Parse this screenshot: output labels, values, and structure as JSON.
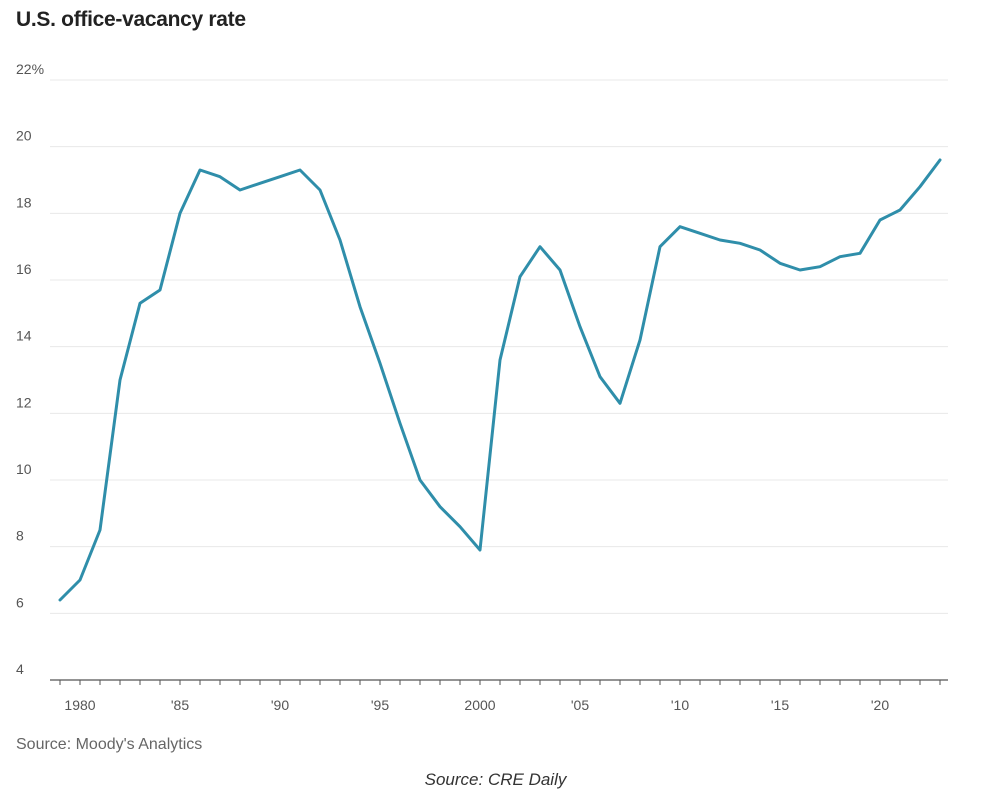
{
  "title": "U.S. office-vacancy rate",
  "source": "Source: Moody's Analytics",
  "credit": "Source: CRE Daily",
  "colors": {
    "line": "#2f8eaa",
    "grid": "#e8e8e8",
    "tick_text": "#555555",
    "axis": "#555555"
  },
  "chart_data": {
    "type": "line",
    "title": "U.S. office-vacancy rate",
    "xlabel": "",
    "ylabel": "",
    "unit": "%",
    "xlim": [
      1979,
      2023
    ],
    "ylim": [
      4,
      22
    ],
    "grid": true,
    "y_ticks": [
      {
        "value": 22,
        "label": "22%"
      },
      {
        "value": 20,
        "label": "20"
      },
      {
        "value": 18,
        "label": "18"
      },
      {
        "value": 16,
        "label": "16"
      },
      {
        "value": 14,
        "label": "14"
      },
      {
        "value": 12,
        "label": "12"
      },
      {
        "value": 10,
        "label": "10"
      },
      {
        "value": 8,
        "label": "8"
      },
      {
        "value": 6,
        "label": "6"
      },
      {
        "value": 4,
        "label": "4"
      }
    ],
    "x_ticks": [
      {
        "value": 1980,
        "label": "1980"
      },
      {
        "value": 1985,
        "label": "'85"
      },
      {
        "value": 1990,
        "label": "'90"
      },
      {
        "value": 1995,
        "label": "'95"
      },
      {
        "value": 2000,
        "label": "2000"
      },
      {
        "value": 2005,
        "label": "'05"
      },
      {
        "value": 2010,
        "label": "'10"
      },
      {
        "value": 2015,
        "label": "'15"
      },
      {
        "value": 2020,
        "label": "'20"
      }
    ],
    "series": [
      {
        "x": [
          1979,
          1980,
          1981,
          1982,
          1983,
          1984,
          1985,
          1986,
          1987,
          1988,
          1989,
          1990,
          1991,
          1992,
          1993,
          1994,
          1995,
          1996,
          1997,
          1998,
          1999,
          2000,
          2001,
          2002,
          2003,
          2004,
          2005,
          2006,
          2007,
          2008,
          2009,
          2010,
          2011,
          2012,
          2013,
          2014,
          2015,
          2016,
          2017,
          2018,
          2019,
          2020,
          2021,
          2022,
          2023
        ],
        "values": [
          6.4,
          7.0,
          8.5,
          13.0,
          15.3,
          15.7,
          18.0,
          19.3,
          19.1,
          18.7,
          18.9,
          19.1,
          19.3,
          18.7,
          17.2,
          15.2,
          13.5,
          11.7,
          10.0,
          9.2,
          8.6,
          7.9,
          13.6,
          16.1,
          17.0,
          16.3,
          14.6,
          13.1,
          12.3,
          14.2,
          17.0,
          17.6,
          17.4,
          17.2,
          17.1,
          16.9,
          16.5,
          16.3,
          16.4,
          16.7,
          16.8,
          17.8,
          18.1,
          18.8,
          19.6
        ]
      }
    ]
  }
}
